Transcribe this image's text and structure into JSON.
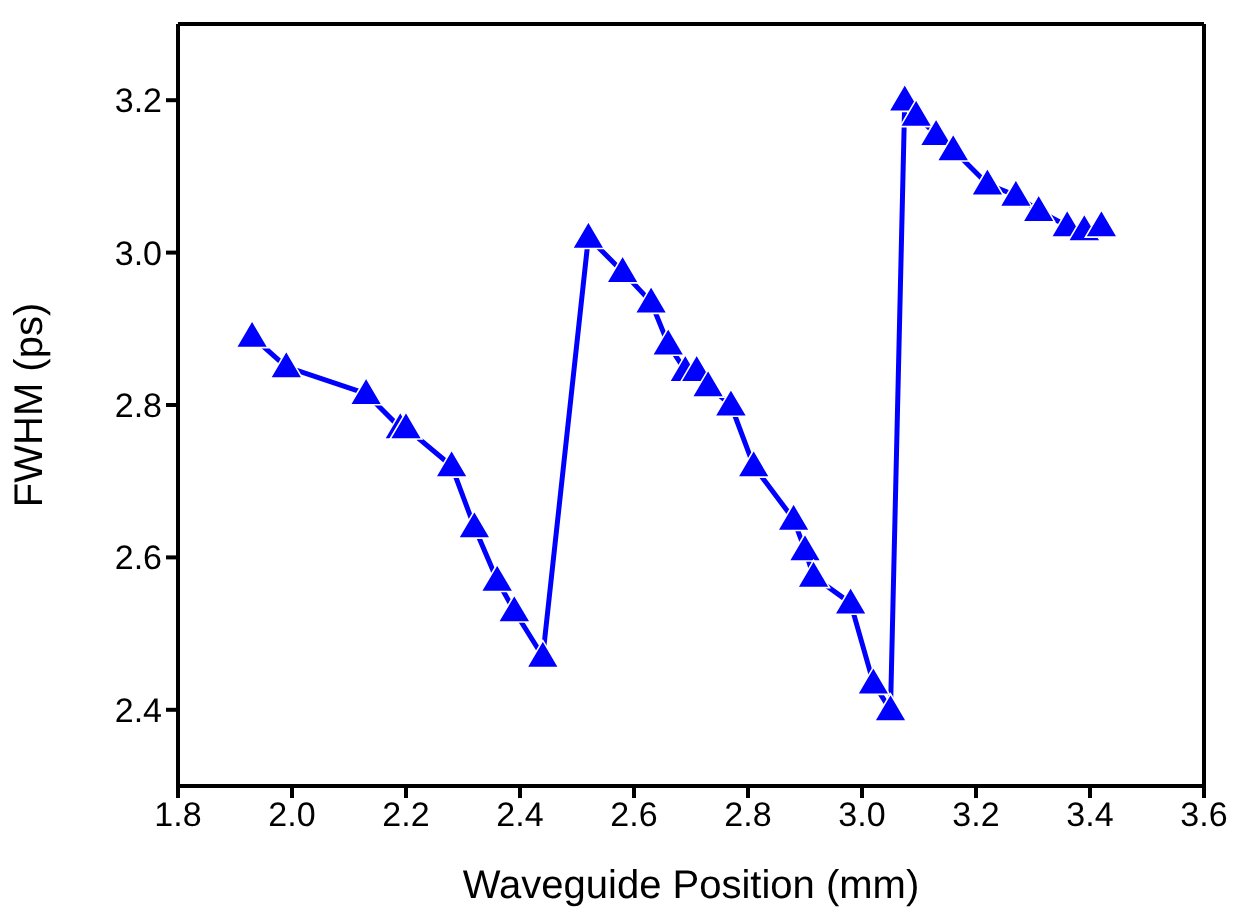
{
  "chart_data": {
    "type": "line",
    "xlabel": "Waveguide  Position (mm)",
    "ylabel": "FWHM (ps)",
    "x": [
      1.93,
      1.99,
      2.13,
      2.19,
      2.2,
      2.28,
      2.32,
      2.36,
      2.39,
      2.44,
      2.52,
      2.58,
      2.63,
      2.66,
      2.69,
      2.71,
      2.73,
      2.77,
      2.81,
      2.88,
      2.9,
      2.915,
      2.98,
      3.02,
      3.05,
      3.075,
      3.095,
      3.13,
      3.16,
      3.22,
      3.27,
      3.31,
      3.36,
      3.39,
      3.42
    ],
    "series": [
      {
        "color": "#0000ff",
        "values": [
          2.89,
          2.85,
          2.815,
          2.77,
          2.77,
          2.72,
          2.64,
          2.57,
          2.53,
          2.47,
          3.02,
          2.975,
          2.935,
          2.88,
          2.845,
          2.845,
          2.825,
          2.8,
          2.72,
          2.65,
          2.61,
          2.575,
          2.54,
          2.435,
          2.4,
          3.2,
          3.18,
          3.155,
          3.135,
          3.09,
          3.075,
          3.055,
          3.035,
          3.03,
          3.035
        ]
      }
    ],
    "xlim": [
      1.8,
      3.6
    ],
    "xticks": [
      1.8,
      {
        "value": 2,
        "label": "2.0"
      },
      2.2,
      2.4,
      2.6,
      2.8,
      {
        "value": 3,
        "label": "3.0"
      },
      3.2,
      3.4,
      3.6
    ],
    "ylim": [
      2.3,
      3.3
    ],
    "yticks": [
      2.4,
      2.6,
      2.8,
      {
        "value": 3,
        "label": "3.0"
      },
      3.2
    ],
    "grid": false,
    "legend": false,
    "marker": "triangle",
    "line_style": "solid"
  }
}
